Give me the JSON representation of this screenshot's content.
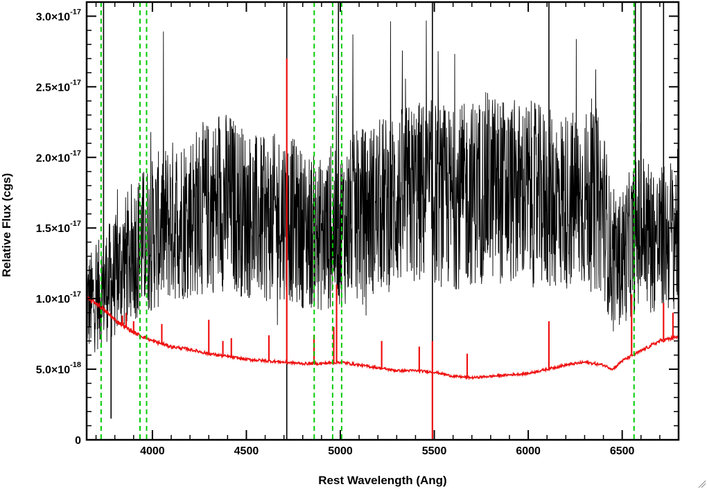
{
  "chart_data": {
    "type": "line",
    "xlabel": "Rest Wavelength (Ang)",
    "ylabel": "Relative Flux (cgs)",
    "xlim": [
      3650,
      6800
    ],
    "ylim": [
      0,
      3.1e-17
    ],
    "x_ticks": [
      {
        "value": 4000,
        "label": "4000"
      },
      {
        "value": 4500,
        "label": "4500"
      },
      {
        "value": 5000,
        "label": "5000"
      },
      {
        "value": 5500,
        "label": "5500"
      },
      {
        "value": 6000,
        "label": "6000"
      },
      {
        "value": 6500,
        "label": "6500"
      }
    ],
    "y_ticks": [
      {
        "value": 0,
        "mantissa": "0",
        "exponent": ""
      },
      {
        "value": 5e-18,
        "mantissa": "5.0×10",
        "exponent": "-18"
      },
      {
        "value": 1e-17,
        "mantissa": "1.0×10",
        "exponent": "-17"
      },
      {
        "value": 1.5e-17,
        "mantissa": "1.5×10",
        "exponent": "-17"
      },
      {
        "value": 2e-17,
        "mantissa": "2.0×10",
        "exponent": "-17"
      },
      {
        "value": 2.5e-17,
        "mantissa": "2.5×10",
        "exponent": "-17"
      },
      {
        "value": 3e-17,
        "mantissa": "3.0×10",
        "exponent": "-17"
      }
    ],
    "series": [
      {
        "color": "#000000",
        "style": "noisy-spectrum",
        "x": [
          3650,
          3700,
          3750,
          3800,
          3850,
          3900,
          3950,
          4000,
          4100,
          4200,
          4300,
          4400,
          4500,
          4600,
          4700,
          4800,
          4900,
          5000,
          5100,
          5200,
          5300,
          5400,
          5500,
          5600,
          5700,
          5800,
          5900,
          6000,
          6100,
          6200,
          6300,
          6400,
          6450,
          6500,
          6600,
          6700,
          6800
        ],
        "y": [
          9.5e-18,
          1e-17,
          1.1e-17,
          1.15e-17,
          1.25e-17,
          1.35e-17,
          1.4e-17,
          1.45e-17,
          1.55e-17,
          1.6e-17,
          1.65e-17,
          1.7e-17,
          1.6e-17,
          1.55e-17,
          1.6e-17,
          1.5e-17,
          1.45e-17,
          1.5e-17,
          1.6e-17,
          1.65e-17,
          1.7e-17,
          1.75e-17,
          1.75e-17,
          1.7e-17,
          1.75e-17,
          1.8e-17,
          1.75e-17,
          1.75e-17,
          1.7e-17,
          1.7e-17,
          1.7e-17,
          1.65e-17,
          1.2e-17,
          1.3e-17,
          1.5e-17,
          1.4e-17,
          1.5e-17
        ],
        "spikes": [
          {
            "x": 3740,
            "y": 3.1e-17
          },
          {
            "x": 4715,
            "y": 3.1e-17
          },
          {
            "x": 4715,
            "y": 0
          },
          {
            "x": 4990,
            "y": 3.1e-17
          },
          {
            "x": 5490,
            "y": 3.1e-17
          },
          {
            "x": 5490,
            "y": 0
          },
          {
            "x": 6110,
            "y": 3.1e-17
          },
          {
            "x": 6570,
            "y": 3.1e-17
          },
          {
            "x": 6600,
            "y": 3.1e-17
          },
          {
            "x": 6720,
            "y": 3.1e-17
          },
          {
            "x": 3780,
            "y": 1.5e-18
          }
        ]
      },
      {
        "color": "#ee1111",
        "style": "error-spectrum",
        "x": [
          3650,
          3700,
          3800,
          3900,
          4000,
          4100,
          4200,
          4300,
          4400,
          4500,
          4600,
          4700,
          4800,
          4900,
          5000,
          5100,
          5200,
          5300,
          5400,
          5500,
          5600,
          5700,
          5800,
          5900,
          6000,
          6100,
          6200,
          6300,
          6400,
          6450,
          6500,
          6600,
          6700,
          6800
        ],
        "y": [
          1e-17,
          9.7e-18,
          8.5e-18,
          7.6e-18,
          7e-18,
          6.6e-18,
          6.4e-18,
          6.1e-18,
          5.9e-18,
          5.7e-18,
          5.6e-18,
          5.5e-18,
          5.4e-18,
          5.4e-18,
          5.5e-18,
          5.3e-18,
          5.1e-18,
          4.9e-18,
          4.9e-18,
          4.8e-18,
          4.5e-18,
          4.4e-18,
          4.5e-18,
          4.6e-18,
          4.7e-18,
          5e-18,
          5.3e-18,
          5.5e-18,
          5.3e-18,
          5e-18,
          5.6e-18,
          6.3e-18,
          7e-18,
          7.3e-18
        ],
        "spikes": [
          {
            "x": 3840,
            "y": 8.8e-18
          },
          {
            "x": 3860,
            "y": 9e-18
          },
          {
            "x": 3900,
            "y": 8.4e-18
          },
          {
            "x": 4050,
            "y": 8.2e-18
          },
          {
            "x": 4300,
            "y": 8.5e-18
          },
          {
            "x": 4375,
            "y": 7e-18
          },
          {
            "x": 4420,
            "y": 7.2e-18
          },
          {
            "x": 4620,
            "y": 7.4e-18
          },
          {
            "x": 4715,
            "y": 2.7e-17
          },
          {
            "x": 4860,
            "y": 7.4e-18
          },
          {
            "x": 4965,
            "y": 8e-18
          },
          {
            "x": 4980,
            "y": 1.1e-17
          },
          {
            "x": 5220,
            "y": 7e-18
          },
          {
            "x": 5420,
            "y": 6.6e-18
          },
          {
            "x": 5490,
            "y": 7e-18
          },
          {
            "x": 5490,
            "y": 0
          },
          {
            "x": 5675,
            "y": 6.1e-18
          },
          {
            "x": 6110,
            "y": 8.4e-18
          },
          {
            "x": 6550,
            "y": 1.03e-17
          },
          {
            "x": 6720,
            "y": 9.7e-18
          },
          {
            "x": 6770,
            "y": 9e-18
          }
        ]
      }
    ],
    "reference_lines": [
      {
        "x": 3727,
        "color": "#00cc00",
        "style": "dashed"
      },
      {
        "x": 3934,
        "color": "#00cc00",
        "style": "dashed"
      },
      {
        "x": 3969,
        "color": "#00cc00",
        "style": "dashed"
      },
      {
        "x": 4861,
        "color": "#00cc00",
        "style": "dashed"
      },
      {
        "x": 4959,
        "color": "#00cc00",
        "style": "dashed"
      },
      {
        "x": 5007,
        "color": "#00cc00",
        "style": "dashed"
      },
      {
        "x": 6563,
        "color": "#00cc00",
        "style": "dashed"
      }
    ],
    "grid": false,
    "legend": "none"
  }
}
